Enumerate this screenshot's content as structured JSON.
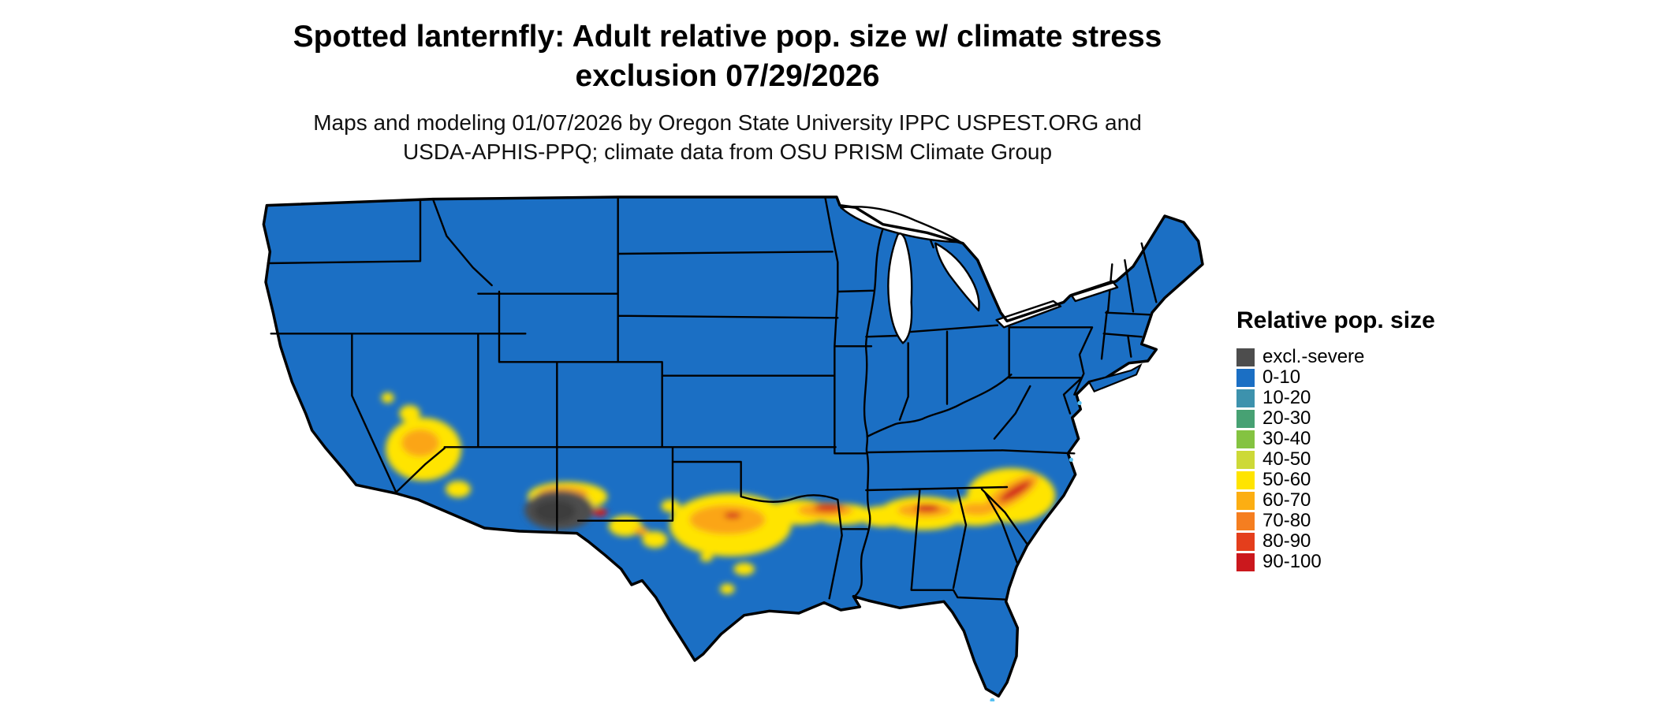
{
  "title": {
    "line1": "Spotted lanternfly: Adult relative pop. size w/ climate stress",
    "line2": "exclusion 07/29/2026"
  },
  "subtitle": {
    "line1": "Maps and modeling 01/07/2026 by Oregon State University IPPC USPEST.ORG and",
    "line2": "USDA-APHIS-PPQ; climate data from OSU PRISM Climate Group"
  },
  "legend": {
    "title": "Relative pop. size",
    "items": [
      {
        "label": "excl.-severe",
        "color": "#4d4d4d"
      },
      {
        "label": "0-10",
        "color": "#1b6fc4"
      },
      {
        "label": "10-20",
        "color": "#3d92ad"
      },
      {
        "label": "20-30",
        "color": "#47a173"
      },
      {
        "label": "30-40",
        "color": "#84c341"
      },
      {
        "label": "40-50",
        "color": "#cdd937"
      },
      {
        "label": "50-60",
        "color": "#ffe400"
      },
      {
        "label": "60-70",
        "color": "#fcae12"
      },
      {
        "label": "70-80",
        "color": "#f57e20"
      },
      {
        "label": "80-90",
        "color": "#e43e1c"
      },
      {
        "label": "90-100",
        "color": "#cb181d"
      }
    ]
  }
}
